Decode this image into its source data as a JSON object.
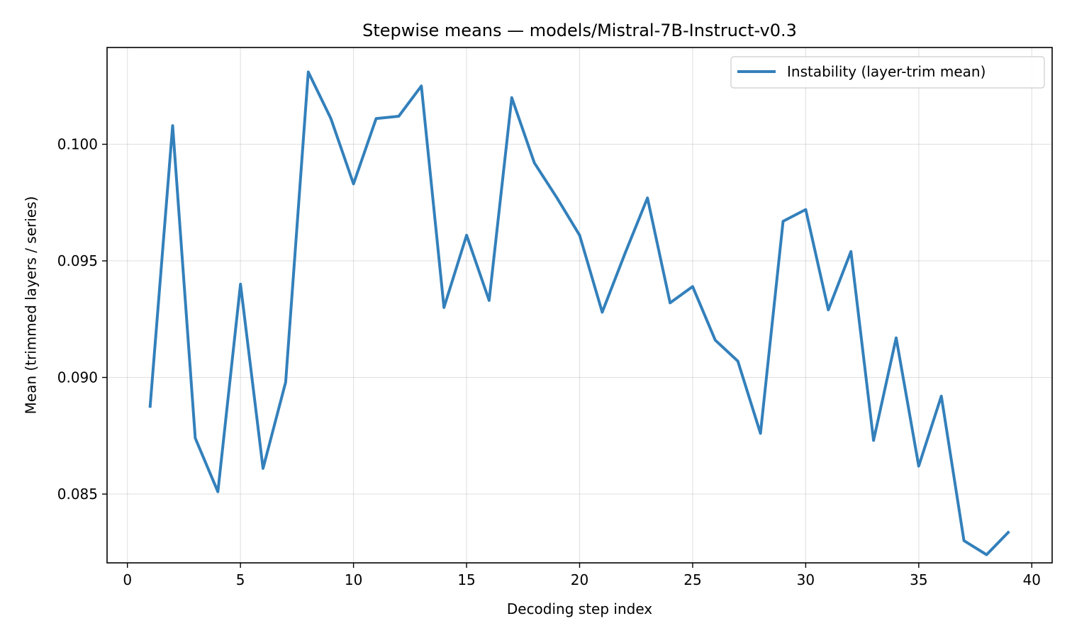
{
  "chart_data": {
    "type": "line",
    "title": "Stepwise means — models/Mistral-7B-Instruct-v0.3",
    "xlabel": "Decoding step index",
    "ylabel": "Mean (trimmed layers / series)",
    "xlim": [
      -0.9,
      40.9
    ],
    "ylim": [
      0.08205,
      0.10415
    ],
    "xticks": [
      0,
      5,
      10,
      15,
      20,
      25,
      30,
      35,
      40
    ],
    "xtick_labels": [
      "0",
      "5",
      "10",
      "15",
      "20",
      "25",
      "30",
      "35",
      "40"
    ],
    "yticks": [
      0.085,
      0.09,
      0.095,
      0.1
    ],
    "ytick_labels": [
      "0.085",
      "0.090",
      "0.095",
      "0.100"
    ],
    "grid": true,
    "legend_position": "top-right",
    "series_color": "#3380bb",
    "series": [
      {
        "name": "Instability (layer-trim mean)",
        "x": [
          1,
          2,
          3,
          4,
          5,
          6,
          7,
          8,
          9,
          10,
          11,
          12,
          13,
          14,
          15,
          16,
          17,
          18,
          19,
          20,
          21,
          22,
          23,
          24,
          25,
          26,
          27,
          28,
          29,
          30,
          31,
          32,
          33,
          34,
          35,
          36,
          37,
          38,
          39
        ],
        "y": [
          0.0887,
          0.1008,
          0.0874,
          0.0851,
          0.094,
          0.0861,
          0.0898,
          0.1031,
          0.1011,
          0.0983,
          0.1011,
          0.1012,
          0.1025,
          0.093,
          0.0961,
          0.0933,
          0.102,
          0.0992,
          0.0977,
          0.0961,
          0.0928,
          0.0953,
          0.0977,
          0.0932,
          0.0939,
          0.0916,
          0.0907,
          0.0876,
          0.0967,
          0.0972,
          0.0929,
          0.0954,
          0.0873,
          0.0917,
          0.0862,
          0.0892,
          0.083,
          0.0824,
          0.0834
        ]
      }
    ]
  }
}
